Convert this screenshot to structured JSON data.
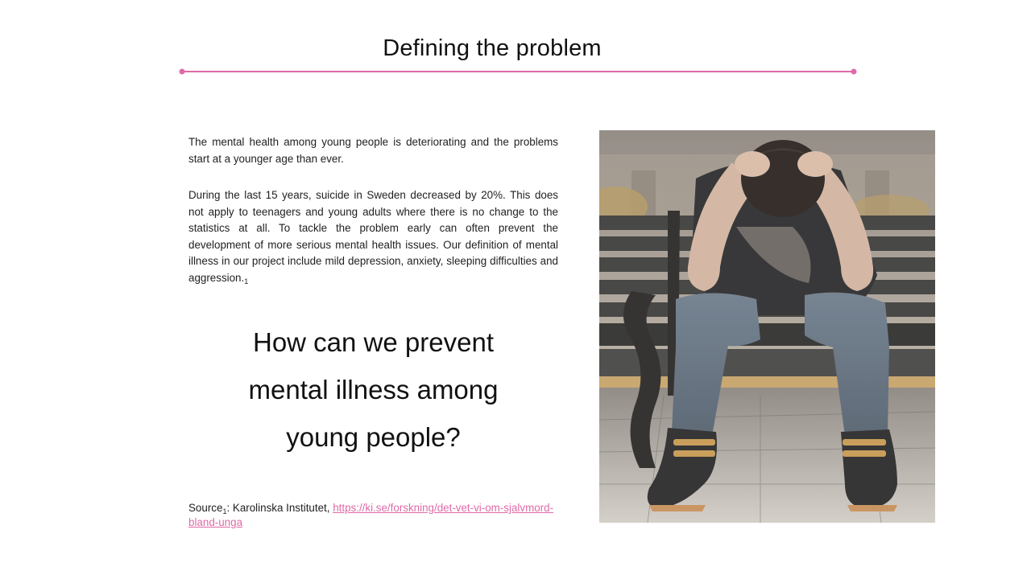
{
  "slide": {
    "title": "Defining the problem",
    "paragraph1": "The mental health among young people is deteriorating and the problems start at a younger age than ever.",
    "paragraph2": "During the last 15 years, suicide in Sweden decreased by 20%. This does not apply to teenagers and young adults where there is no change to the statistics at all. To tackle the problem early can often prevent the development of more serious mental health issues. Our definition of mental illness in our project include mild depression, anxiety, sleeping difficulties and aggression.",
    "paragraph2_ref": "1",
    "question_line1": "How can we prevent",
    "question_line2": "mental illness among",
    "question_line3": "young people?",
    "source_label": "Source",
    "source_ref": "1",
    "source_text": ": Karolinska Institutet, ",
    "source_link": "https://ki.se/forskning/det-vet-vi-om-sjalvmord-bland-unga"
  },
  "colors": {
    "accent": "#e06aa7"
  },
  "image": {
    "icon": "distressed-person-photo"
  }
}
